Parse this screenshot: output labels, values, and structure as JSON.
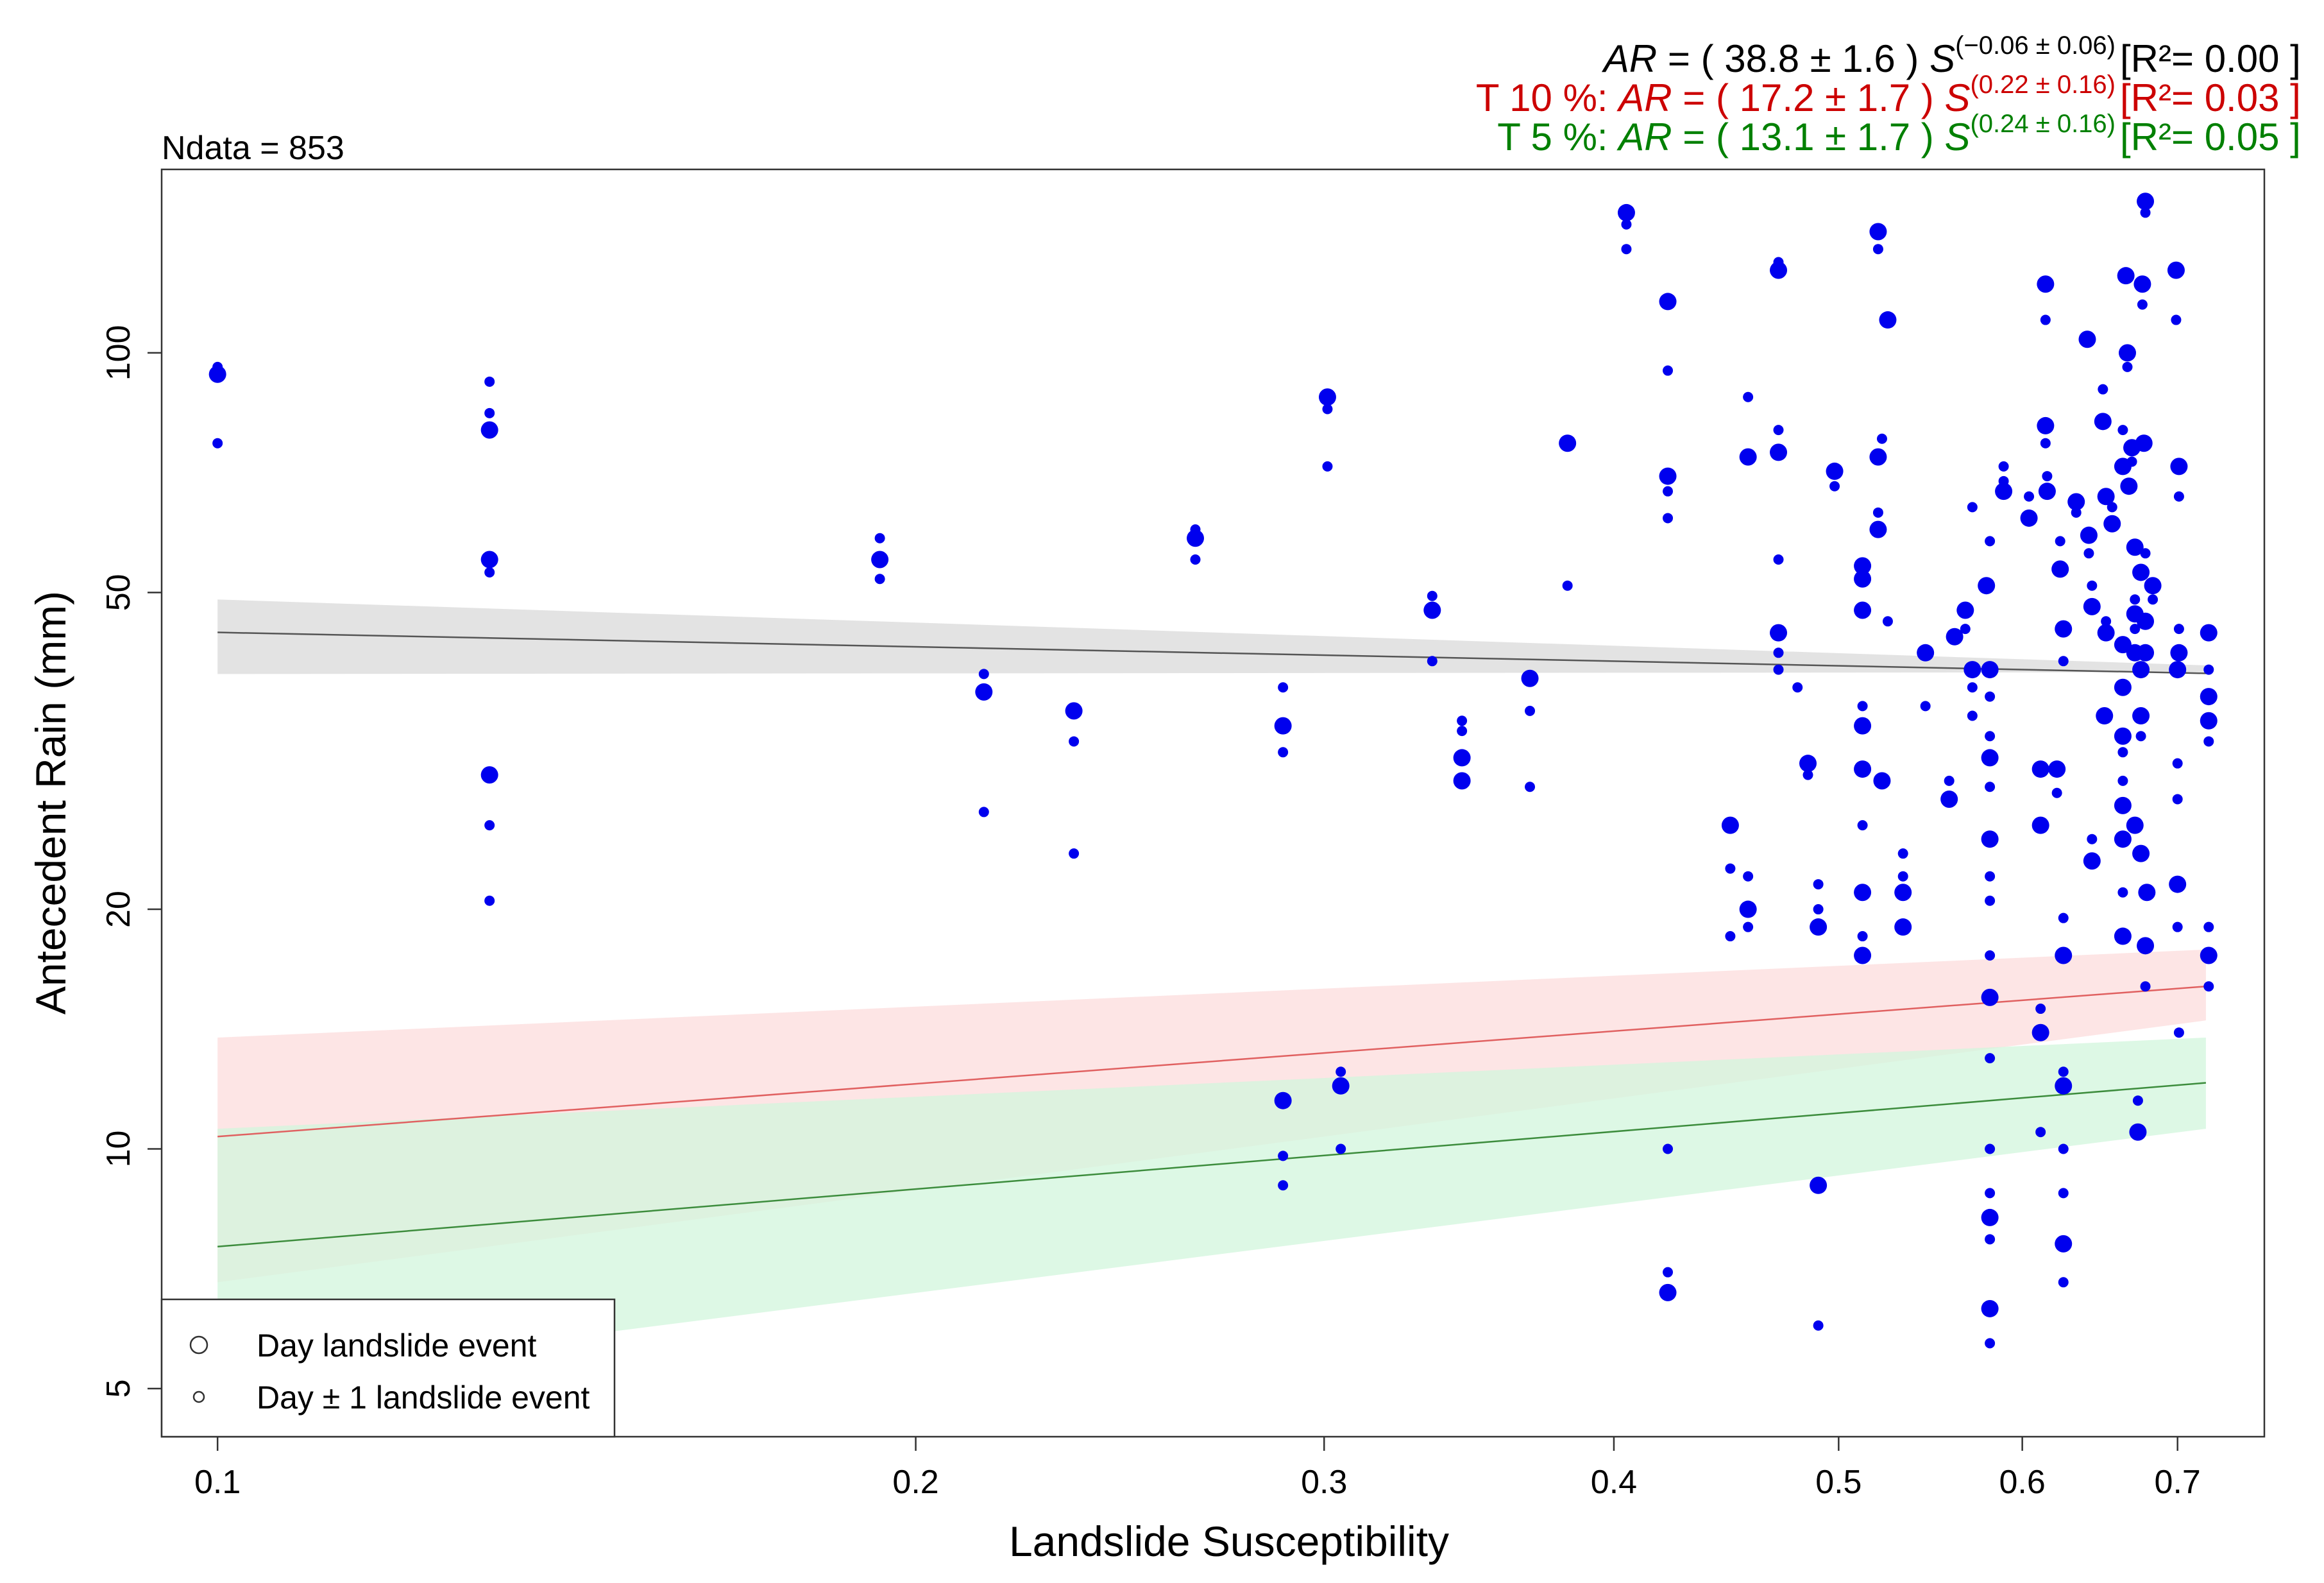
{
  "chart_data": {
    "type": "scatter",
    "title": "Ndata = 853",
    "xlabel": "Landslide Susceptibility",
    "ylabel": "Antecedent Rain (mm)",
    "x_scale": "log",
    "y_scale": "log",
    "xlim": [
      0.0946,
      0.763
    ],
    "ylim": [
      4.35,
      170
    ],
    "x_ticks": [
      {
        "value": 0.1,
        "label": "0.1"
      },
      {
        "value": 0.2,
        "label": "0.2"
      },
      {
        "value": 0.3,
        "label": "0.3"
      },
      {
        "value": 0.4,
        "label": "0.4"
      },
      {
        "value": 0.5,
        "label": "0.5"
      },
      {
        "value": 0.6,
        "label": "0.6"
      },
      {
        "value": 0.7,
        "label": "0.7"
      }
    ],
    "y_ticks": [
      {
        "value": 5,
        "label": "5"
      },
      {
        "value": 10,
        "label": "10"
      },
      {
        "value": 20,
        "label": "20"
      },
      {
        "value": 50,
        "label": "50"
      },
      {
        "value": 100,
        "label": "100"
      }
    ],
    "equations": [
      {
        "prefix": "",
        "lhs": "AR",
        "body": " =  ( 38.8 ± 1.6 ) ",
        "base": "S",
        "exponent": "(−0.06 ± 0.06)",
        "r2": "[R²= 0.00 ]",
        "color": "#000000"
      },
      {
        "prefix": "T 10 %: ",
        "lhs": "AR",
        "body": " =  ( 17.2 ± 1.7 ) ",
        "base": "S",
        "exponent": "(0.22 ± 0.16)",
        "r2": "[R²= 0.03 ]",
        "color": "#cc0000"
      },
      {
        "prefix": "T 5 %: ",
        "lhs": "AR",
        "body": " =  ( 13.1 ± 1.7 ) ",
        "base": "S",
        "exponent": "(0.24 ± 0.16)",
        "r2": "[R²= 0.05 ]",
        "color": "#008000"
      }
    ],
    "legend": {
      "position": "bottom-left",
      "items": [
        {
          "label": "Day landslide event",
          "marker": "large-circle"
        },
        {
          "label": "Day ± 1 landslide event",
          "marker": "small-circle"
        }
      ]
    },
    "colors": {
      "points": "#0000ee",
      "fit_line": "#555555",
      "fit_band": "#e3e3e3",
      "t10_line": "#e06060",
      "t10_band": "#fde2e2",
      "t5_line": "#3c8c3c",
      "t5_band": "#d2f5dc",
      "overlap_band": "#e8e2cc"
    },
    "fits": [
      {
        "name": "Best fit",
        "coef": 38.8,
        "exp": -0.06,
        "band_low": [
          39.5,
          39.7
        ],
        "band_high": [
          49.0,
          40.5
        ],
        "x_range": [
          0.1,
          0.72
        ]
      },
      {
        "name": "T 10 %",
        "coef": 17.2,
        "exp": 0.22,
        "band_low": [
          6.8,
          14.5
        ],
        "band_high": [
          13.8,
          17.8
        ],
        "x_range": [
          0.1,
          0.72
        ]
      },
      {
        "name": "T 5 %",
        "coef": 13.1,
        "exp": 0.24,
        "band_low": [
          5.1,
          10.6
        ],
        "band_high": [
          10.6,
          13.8
        ],
        "x_range": [
          0.1,
          0.72
        ]
      }
    ],
    "series": [
      {
        "name": "Day landslide event",
        "marker_size": "large",
        "points": [
          [
            0.1,
            94
          ],
          [
            0.131,
            80
          ],
          [
            0.131,
            55
          ],
          [
            0.131,
            29.5
          ],
          [
            0.193,
            55
          ],
          [
            0.214,
            37.5
          ],
          [
            0.234,
            35.5
          ],
          [
            0.264,
            58.5
          ],
          [
            0.288,
            34
          ],
          [
            0.288,
            11.5
          ],
          [
            0.301,
            88
          ],
          [
            0.305,
            12
          ],
          [
            0.334,
            47.5
          ],
          [
            0.344,
            31
          ],
          [
            0.344,
            29
          ],
          [
            0.368,
            39
          ],
          [
            0.382,
            77
          ],
          [
            0.405,
            150
          ],
          [
            0.422,
            116
          ],
          [
            0.422,
            70
          ],
          [
            0.422,
            6.6
          ],
          [
            0.449,
            25.5
          ],
          [
            0.457,
            20
          ],
          [
            0.457,
            74
          ],
          [
            0.471,
            44.5
          ],
          [
            0.471,
            127
          ],
          [
            0.471,
            75
          ],
          [
            0.485,
            30.5
          ],
          [
            0.49,
            19
          ],
          [
            0.49,
            9
          ],
          [
            0.498,
            71
          ],
          [
            0.512,
            54
          ],
          [
            0.512,
            52
          ],
          [
            0.512,
            47.5
          ],
          [
            0.512,
            34
          ],
          [
            0.512,
            30
          ],
          [
            0.512,
            21
          ],
          [
            0.512,
            17.5
          ],
          [
            0.52,
            142
          ],
          [
            0.52,
            74
          ],
          [
            0.52,
            60
          ],
          [
            0.522,
            29
          ],
          [
            0.525,
            110
          ],
          [
            0.533,
            21
          ],
          [
            0.533,
            19
          ],
          [
            0.545,
            42
          ],
          [
            0.558,
            27.5
          ],
          [
            0.561,
            44
          ],
          [
            0.567,
            47.5
          ],
          [
            0.571,
            40
          ],
          [
            0.579,
            51
          ],
          [
            0.581,
            40
          ],
          [
            0.581,
            31
          ],
          [
            0.581,
            24.5
          ],
          [
            0.581,
            15.5
          ],
          [
            0.581,
            8.2
          ],
          [
            0.581,
            6.3
          ],
          [
            0.589,
            67
          ],
          [
            0.604,
            62
          ],
          [
            0.611,
            14
          ],
          [
            0.611,
            25.5
          ],
          [
            0.611,
            30
          ],
          [
            0.614,
            122
          ],
          [
            0.614,
            81
          ],
          [
            0.615,
            67
          ],
          [
            0.621,
            30
          ],
          [
            0.623,
            53.5
          ],
          [
            0.625,
            45
          ],
          [
            0.625,
            17.5
          ],
          [
            0.625,
            12
          ],
          [
            0.625,
            7.6
          ],
          [
            0.633,
            65
          ],
          [
            0.64,
            104
          ],
          [
            0.641,
            59
          ],
          [
            0.643,
            23
          ],
          [
            0.643,
            48
          ],
          [
            0.65,
            82
          ],
          [
            0.651,
            35
          ],
          [
            0.652,
            66
          ],
          [
            0.652,
            44.5
          ],
          [
            0.656,
            61
          ],
          [
            0.663,
            72
          ],
          [
            0.663,
            43
          ],
          [
            0.663,
            38
          ],
          [
            0.663,
            33
          ],
          [
            0.663,
            27
          ],
          [
            0.663,
            24.5
          ],
          [
            0.663,
            18.5
          ],
          [
            0.665,
            125
          ],
          [
            0.666,
            100
          ],
          [
            0.667,
            68
          ],
          [
            0.669,
            76
          ],
          [
            0.671,
            57
          ],
          [
            0.671,
            47
          ],
          [
            0.671,
            42
          ],
          [
            0.671,
            25.5
          ],
          [
            0.673,
            10.5
          ],
          [
            0.675,
            53
          ],
          [
            0.675,
            40
          ],
          [
            0.675,
            35
          ],
          [
            0.675,
            23.5
          ],
          [
            0.676,
            122
          ],
          [
            0.677,
            77
          ],
          [
            0.678,
            155
          ],
          [
            0.678,
            46
          ],
          [
            0.678,
            42
          ],
          [
            0.678,
            18
          ],
          [
            0.679,
            21
          ],
          [
            0.683,
            51
          ],
          [
            0.699,
            127
          ],
          [
            0.7,
            40
          ],
          [
            0.7,
            21.5
          ],
          [
            0.701,
            42
          ],
          [
            0.701,
            72
          ],
          [
            0.722,
            44.5
          ],
          [
            0.722,
            37
          ],
          [
            0.722,
            34.5
          ],
          [
            0.722,
            17.5
          ]
        ]
      },
      {
        "name": "Day ± 1 landslide event",
        "marker_size": "small",
        "points": [
          [
            0.1,
            96
          ],
          [
            0.1,
            77
          ],
          [
            0.131,
            92
          ],
          [
            0.131,
            84
          ],
          [
            0.131,
            53
          ],
          [
            0.131,
            25.5
          ],
          [
            0.131,
            20.5
          ],
          [
            0.193,
            58.5
          ],
          [
            0.193,
            52
          ],
          [
            0.214,
            39.5
          ],
          [
            0.214,
            26.5
          ],
          [
            0.234,
            32.5
          ],
          [
            0.234,
            23.5
          ],
          [
            0.264,
            60
          ],
          [
            0.264,
            55
          ],
          [
            0.288,
            38
          ],
          [
            0.288,
            31.5
          ],
          [
            0.288,
            9.8
          ],
          [
            0.288,
            9
          ],
          [
            0.301,
            85
          ],
          [
            0.301,
            72
          ],
          [
            0.305,
            12.5
          ],
          [
            0.305,
            10
          ],
          [
            0.334,
            49.5
          ],
          [
            0.334,
            41
          ],
          [
            0.344,
            34.5
          ],
          [
            0.344,
            33.5
          ],
          [
            0.368,
            35.5
          ],
          [
            0.368,
            28.5
          ],
          [
            0.382,
            51
          ],
          [
            0.405,
            135
          ],
          [
            0.405,
            145
          ],
          [
            0.422,
            95
          ],
          [
            0.422,
            62
          ],
          [
            0.422,
            67
          ],
          [
            0.422,
            10
          ],
          [
            0.422,
            7
          ],
          [
            0.449,
            22.5
          ],
          [
            0.449,
            18.5
          ],
          [
            0.457,
            88
          ],
          [
            0.457,
            19
          ],
          [
            0.457,
            22
          ],
          [
            0.471,
            55
          ],
          [
            0.471,
            130
          ],
          [
            0.471,
            80
          ],
          [
            0.471,
            40
          ],
          [
            0.471,
            42
          ],
          [
            0.48,
            38
          ],
          [
            0.485,
            29.5
          ],
          [
            0.49,
            21.5
          ],
          [
            0.49,
            20
          ],
          [
            0.49,
            6
          ],
          [
            0.498,
            68
          ],
          [
            0.512,
            36
          ],
          [
            0.512,
            25.5
          ],
          [
            0.512,
            18.5
          ],
          [
            0.52,
            135
          ],
          [
            0.52,
            63
          ],
          [
            0.522,
            78
          ],
          [
            0.525,
            46
          ],
          [
            0.533,
            22
          ],
          [
            0.533,
            23.5
          ],
          [
            0.545,
            36
          ],
          [
            0.558,
            29
          ],
          [
            0.567,
            45
          ],
          [
            0.571,
            64
          ],
          [
            0.571,
            38
          ],
          [
            0.571,
            35
          ],
          [
            0.581,
            58
          ],
          [
            0.581,
            37
          ],
          [
            0.581,
            33
          ],
          [
            0.581,
            28.5
          ],
          [
            0.581,
            22
          ],
          [
            0.581,
            20.5
          ],
          [
            0.581,
            17.5
          ],
          [
            0.581,
            13
          ],
          [
            0.581,
            10
          ],
          [
            0.581,
            8.8
          ],
          [
            0.581,
            7.7
          ],
          [
            0.581,
            5.7
          ],
          [
            0.589,
            72
          ],
          [
            0.589,
            69
          ],
          [
            0.604,
            66
          ],
          [
            0.611,
            15
          ],
          [
            0.611,
            10.5
          ],
          [
            0.614,
            110
          ],
          [
            0.614,
            77
          ],
          [
            0.615,
            70
          ],
          [
            0.621,
            28
          ],
          [
            0.623,
            58
          ],
          [
            0.625,
            41
          ],
          [
            0.625,
            19.5
          ],
          [
            0.625,
            12.5
          ],
          [
            0.625,
            10
          ],
          [
            0.625,
            8.8
          ],
          [
            0.625,
            6.8
          ],
          [
            0.633,
            63
          ],
          [
            0.641,
            56
          ],
          [
            0.643,
            24.5
          ],
          [
            0.643,
            51
          ],
          [
            0.65,
            90
          ],
          [
            0.652,
            46
          ],
          [
            0.656,
            64
          ],
          [
            0.663,
            80
          ],
          [
            0.663,
            31.5
          ],
          [
            0.663,
            29
          ],
          [
            0.663,
            21
          ],
          [
            0.666,
            96
          ],
          [
            0.669,
            73
          ],
          [
            0.671,
            49
          ],
          [
            0.671,
            45
          ],
          [
            0.673,
            11.5
          ],
          [
            0.675,
            33
          ],
          [
            0.676,
            115
          ],
          [
            0.678,
            150
          ],
          [
            0.678,
            56
          ],
          [
            0.678,
            16
          ],
          [
            0.683,
            49
          ],
          [
            0.699,
            110
          ],
          [
            0.7,
            30.5
          ],
          [
            0.7,
            19
          ],
          [
            0.7,
            27.5
          ],
          [
            0.701,
            66
          ],
          [
            0.701,
            45
          ],
          [
            0.722,
            40
          ],
          [
            0.722,
            19
          ],
          [
            0.722,
            16
          ],
          [
            0.722,
            32.5
          ],
          [
            0.701,
            14
          ]
        ]
      }
    ]
  }
}
